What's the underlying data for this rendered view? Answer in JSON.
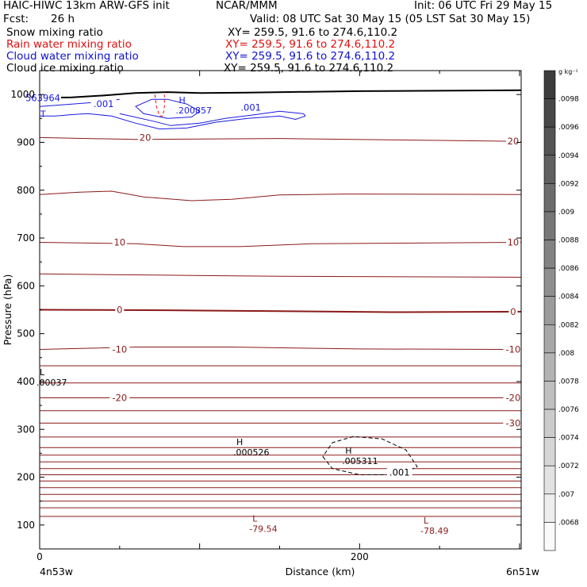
{
  "header": {
    "model": "HAIC-HIWC 13km ARW-GFS init",
    "org": "NCAR/MMM",
    "init": "Init: 06 UTC Fri 29 May 15",
    "fcst_label": "Fcst:",
    "fcst_value": "26 h",
    "valid": "Valid: 08 UTC Sat 30 May 15 (05 LST Sat 30 May 15)"
  },
  "fields": [
    {
      "name": "Snow mixing ratio",
      "xy": "XY= 259.5, 91.6 to 274.6,110.2",
      "color": "#000000"
    },
    {
      "name": "Rain water mixing ratio",
      "xy": "XY= 259.5, 91.6 to 274.6,110.2",
      "color": "#e01010"
    },
    {
      "name": "Cloud water mixing ratio",
      "xy": "XY= 259.5, 91.6 to 274.6,110.2",
      "color": "#1010d0"
    },
    {
      "name": "Cloud ice mixing ratio",
      "xy": "XY= 259.5, 91.6 to 274.6,110.2",
      "color": "#000000"
    }
  ],
  "chart_data": {
    "type": "line",
    "xlabel": "Distance (km)",
    "ylabel": "Pressure (hPa)",
    "xlim": [
      0,
      301
    ],
    "ylim": [
      1050,
      50
    ],
    "x_ticks": [
      0,
      200
    ],
    "y_ticks": [
      100,
      200,
      300,
      400,
      500,
      600,
      700,
      800,
      900,
      1000
    ],
    "x_endpoints": [
      "4n53w",
      "6n51w"
    ],
    "colorbar": {
      "unit": "g kg⁻¹",
      "labels": [
        ".0098",
        ".0096",
        ".0094",
        ".0092",
        ".009",
        ".0088",
        ".0086",
        ".0084",
        ".0082",
        ".008",
        ".0078",
        ".0076",
        ".0074",
        ".0072",
        ".007",
        ".0068"
      ]
    },
    "temperature_contour_labels": [
      {
        "text": "-30",
        "x": 296,
        "p": 313
      },
      {
        "text": "-20",
        "x": 50,
        "p": 366
      },
      {
        "text": "-20",
        "x": 296,
        "p": 366
      },
      {
        "text": "-10",
        "x": 50,
        "p": 467
      },
      {
        "text": "-10",
        "x": 296,
        "p": 467
      },
      {
        "text": "0",
        "x": 50,
        "p": 550
      },
      {
        "text": "0",
        "x": 296,
        "p": 546
      },
      {
        "text": "10",
        "x": 50,
        "p": 691
      },
      {
        "text": "10",
        "x": 296,
        "p": 691
      },
      {
        "text": "20",
        "x": 66,
        "p": 910
      },
      {
        "text": "20",
        "x": 296,
        "p": 902
      }
    ],
    "extrema": [
      {
        "symbol": "L",
        "value": "-79.54",
        "x": 134,
        "p": 102
      },
      {
        "symbol": "L",
        "value": "-78.49",
        "x": 241,
        "p": 98
      },
      {
        "symbol": "H",
        "value": ".000526",
        "x": 124,
        "p": 262
      },
      {
        "symbol": "H",
        "value": ".005311",
        "x": 192,
        "p": 244
      },
      {
        "symbol": "L",
        "value": ".00037",
        "x": 1,
        "p": 408
      },
      {
        "symbol": "H",
        "value": ".200857",
        "x": 88,
        "p": 977
      }
    ],
    "snow_contour_label": {
      "text": ".001",
      "x": 225,
      "p": 210
    },
    "cloud_water_labels": [
      {
        "text": ".001",
        "x": 40,
        "p": 980
      },
      {
        "text": ".001",
        "x": 132,
        "p": 973
      },
      {
        "text": "563964",
        "x": 2,
        "p": 993
      }
    ],
    "cloud_water_marker": "T"
  }
}
